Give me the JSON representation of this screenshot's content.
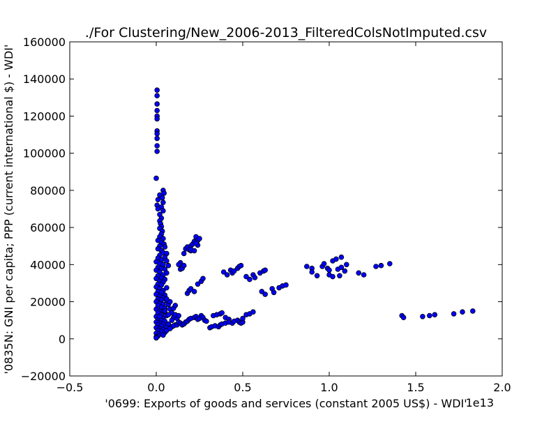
{
  "chart_data": {
    "type": "scatter",
    "title": "./For Clustering/New_2006-2013_FilteredColsNotImputed.csv",
    "xlabel": "'0699: Exports of goods and services  (constant 2005 US$) - WDI'",
    "ylabel": "'0835N: GNI per capita; PPP  (current international $) - WDI'",
    "x_offset_label": "1e13",
    "xlim": [
      -0.5,
      2.0
    ],
    "ylim": [
      -20000,
      160000
    ],
    "x_ticks": [
      "−0.5",
      "0.0",
      "0.5",
      "1.0",
      "1.5",
      "2.0"
    ],
    "y_ticks": [
      "−20000",
      "0",
      "20000",
      "40000",
      "60000",
      "80000",
      "100000",
      "120000",
      "140000",
      "160000"
    ],
    "grid": false,
    "marker_color": "#0000ff",
    "marker_edge_color": "#000000",
    "x_values_unit": "1e13 US$",
    "points": [
      [
        0.005,
        134000
      ],
      [
        0.005,
        131000
      ],
      [
        0.005,
        126500
      ],
      [
        0.005,
        123000
      ],
      [
        0.005,
        120000
      ],
      [
        0.005,
        118500
      ],
      [
        0.005,
        112000
      ],
      [
        0.005,
        110500
      ],
      [
        0.005,
        108000
      ],
      [
        0.005,
        104000
      ],
      [
        0.005,
        101000
      ],
      [
        0.0,
        86500
      ],
      [
        0.04,
        80000
      ],
      [
        0.045,
        78500
      ],
      [
        0.02,
        77500
      ],
      [
        0.035,
        76000
      ],
      [
        0.01,
        75000
      ],
      [
        0.04,
        73500
      ],
      [
        0.005,
        72000
      ],
      [
        0.03,
        71000
      ],
      [
        0.01,
        70000
      ],
      [
        0.04,
        69000
      ],
      [
        0.02,
        67000
      ],
      [
        0.03,
        65000
      ],
      [
        0.02,
        63500
      ],
      [
        0.025,
        62000
      ],
      [
        0.03,
        60500
      ],
      [
        0.02,
        59500
      ],
      [
        0.035,
        58000
      ],
      [
        0.03,
        56500
      ],
      [
        0.02,
        55000
      ],
      [
        0.04,
        54000
      ],
      [
        0.01,
        53000
      ],
      [
        0.03,
        52000
      ],
      [
        0.045,
        51000
      ],
      [
        0.02,
        50000
      ],
      [
        0.05,
        49500
      ],
      [
        0.01,
        48500
      ],
      [
        0.03,
        47500
      ],
      [
        0.04,
        46500
      ],
      [
        0.06,
        46000
      ],
      [
        0.02,
        45000
      ],
      [
        0.05,
        44000
      ],
      [
        0.01,
        43500
      ],
      [
        0.03,
        42500
      ],
      [
        0.06,
        42000
      ],
      [
        0.0,
        41500
      ],
      [
        0.02,
        40500
      ],
      [
        0.04,
        40000
      ],
      [
        0.07,
        39500
      ],
      [
        0.01,
        38500
      ],
      [
        0.03,
        38000
      ],
      [
        0.05,
        37500
      ],
      [
        0.0,
        37000
      ],
      [
        0.02,
        36000
      ],
      [
        0.06,
        35500
      ],
      [
        0.04,
        34500
      ],
      [
        0.01,
        34000
      ],
      [
        0.03,
        33000
      ],
      [
        0.0,
        32500
      ],
      [
        0.05,
        32000
      ],
      [
        0.02,
        31000
      ],
      [
        0.04,
        30500
      ],
      [
        0.01,
        29500
      ],
      [
        0.03,
        29000
      ],
      [
        0.0,
        28000
      ],
      [
        0.06,
        27500
      ],
      [
        0.02,
        27000
      ],
      [
        0.04,
        26000
      ],
      [
        0.01,
        25500
      ],
      [
        0.03,
        25000
      ],
      [
        0.0,
        24000
      ],
      [
        0.05,
        23500
      ],
      [
        0.02,
        23000
      ],
      [
        0.04,
        22000
      ],
      [
        0.01,
        21500
      ],
      [
        0.03,
        21000
      ],
      [
        0.06,
        20500
      ],
      [
        0.0,
        20000
      ],
      [
        0.02,
        19000
      ],
      [
        0.04,
        18500
      ],
      [
        0.01,
        18000
      ],
      [
        0.03,
        17000
      ],
      [
        0.05,
        16500
      ],
      [
        0.0,
        16000
      ],
      [
        0.02,
        15000
      ],
      [
        0.04,
        14500
      ],
      [
        0.01,
        14000
      ],
      [
        0.03,
        13000
      ],
      [
        0.06,
        12500
      ],
      [
        0.0,
        12000
      ],
      [
        0.02,
        11500
      ],
      [
        0.04,
        11000
      ],
      [
        0.01,
        10500
      ],
      [
        0.03,
        10000
      ],
      [
        0.05,
        9500
      ],
      [
        0.0,
        9000
      ],
      [
        0.02,
        8500
      ],
      [
        0.04,
        8000
      ],
      [
        0.01,
        7500
      ],
      [
        0.03,
        7000
      ],
      [
        0.06,
        6500
      ],
      [
        0.0,
        6000
      ],
      [
        0.02,
        5500
      ],
      [
        0.04,
        5000
      ],
      [
        0.01,
        4500
      ],
      [
        0.03,
        4000
      ],
      [
        0.05,
        3500
      ],
      [
        0.0,
        3000
      ],
      [
        0.02,
        2500
      ],
      [
        0.04,
        2000
      ],
      [
        0.01,
        1500
      ],
      [
        0.0,
        1000
      ],
      [
        0.0,
        500
      ],
      [
        0.02,
        12000
      ],
      [
        0.05,
        15000
      ],
      [
        0.08,
        16000
      ],
      [
        0.1,
        16500
      ],
      [
        0.09,
        14000
      ],
      [
        0.07,
        13000
      ],
      [
        0.11,
        18000
      ],
      [
        0.07,
        18500
      ],
      [
        0.08,
        20000
      ],
      [
        0.06,
        21500
      ],
      [
        0.1,
        11500
      ],
      [
        0.09,
        10000
      ],
      [
        0.12,
        11000
      ],
      [
        0.11,
        13000
      ],
      [
        0.13,
        12500
      ],
      [
        0.07,
        8000
      ],
      [
        0.09,
        6500
      ],
      [
        0.11,
        7500
      ],
      [
        0.06,
        4500
      ],
      [
        0.08,
        5500
      ],
      [
        0.1,
        7000
      ],
      [
        0.14,
        37500
      ],
      [
        0.15,
        38000
      ],
      [
        0.16,
        39500
      ],
      [
        0.14,
        41000
      ],
      [
        0.13,
        40000
      ],
      [
        0.16,
        46000
      ],
      [
        0.17,
        48500
      ],
      [
        0.18,
        49500
      ],
      [
        0.19,
        48000
      ],
      [
        0.2,
        47500
      ],
      [
        0.2,
        50000
      ],
      [
        0.21,
        51000
      ],
      [
        0.22,
        52500
      ],
      [
        0.23,
        55000
      ],
      [
        0.24,
        53000
      ],
      [
        0.25,
        54000
      ],
      [
        0.2,
        48000
      ],
      [
        0.22,
        47500
      ],
      [
        0.24,
        50500
      ],
      [
        0.23,
        51500
      ],
      [
        0.18,
        24500
      ],
      [
        0.19,
        26000
      ],
      [
        0.2,
        27000
      ],
      [
        0.22,
        25500
      ],
      [
        0.24,
        29500
      ],
      [
        0.26,
        31000
      ],
      [
        0.27,
        32500
      ],
      [
        0.12,
        7500
      ],
      [
        0.13,
        9000
      ],
      [
        0.14,
        8500
      ],
      [
        0.15,
        7500
      ],
      [
        0.16,
        8000
      ],
      [
        0.17,
        9000
      ],
      [
        0.18,
        9500
      ],
      [
        0.19,
        10500
      ],
      [
        0.2,
        11000
      ],
      [
        0.22,
        11500
      ],
      [
        0.23,
        12000
      ],
      [
        0.24,
        10500
      ],
      [
        0.25,
        11000
      ],
      [
        0.26,
        12500
      ],
      [
        0.27,
        11500
      ],
      [
        0.28,
        10000
      ],
      [
        0.29,
        9500
      ],
      [
        0.31,
        6000
      ],
      [
        0.32,
        6500
      ],
      [
        0.34,
        7000
      ],
      [
        0.36,
        6500
      ],
      [
        0.37,
        7500
      ],
      [
        0.38,
        8000
      ],
      [
        0.33,
        12500
      ],
      [
        0.35,
        13000
      ],
      [
        0.37,
        13500
      ],
      [
        0.38,
        14000
      ],
      [
        0.4,
        11500
      ],
      [
        0.42,
        10500
      ],
      [
        0.4,
        8500
      ],
      [
        0.42,
        9000
      ],
      [
        0.44,
        8500
      ],
      [
        0.45,
        9500
      ],
      [
        0.47,
        10000
      ],
      [
        0.48,
        9000
      ],
      [
        0.49,
        8500
      ],
      [
        0.5,
        9000
      ],
      [
        0.5,
        11000
      ],
      [
        0.52,
        13000
      ],
      [
        0.54,
        13500
      ],
      [
        0.56,
        14500
      ],
      [
        0.39,
        36000
      ],
      [
        0.41,
        34500
      ],
      [
        0.43,
        37000
      ],
      [
        0.44,
        35500
      ],
      [
        0.45,
        36500
      ],
      [
        0.47,
        38000
      ],
      [
        0.48,
        39000
      ],
      [
        0.49,
        39500
      ],
      [
        0.52,
        33500
      ],
      [
        0.54,
        32000
      ],
      [
        0.56,
        34500
      ],
      [
        0.57,
        33000
      ],
      [
        0.6,
        35500
      ],
      [
        0.62,
        36500
      ],
      [
        0.63,
        37000
      ],
      [
        0.61,
        25500
      ],
      [
        0.63,
        24000
      ],
      [
        0.67,
        27000
      ],
      [
        0.68,
        25000
      ],
      [
        0.71,
        27500
      ],
      [
        0.73,
        28500
      ],
      [
        0.75,
        29000
      ],
      [
        0.87,
        39000
      ],
      [
        0.9,
        38000
      ],
      [
        0.9,
        36000
      ],
      [
        0.93,
        34000
      ],
      [
        0.96,
        39000
      ],
      [
        0.97,
        40500
      ],
      [
        0.99,
        38000
      ],
      [
        1.0,
        37000
      ],
      [
        1.0,
        34500
      ],
      [
        1.02,
        33500
      ],
      [
        1.02,
        42000
      ],
      [
        1.04,
        43000
      ],
      [
        1.05,
        37500
      ],
      [
        1.06,
        34000
      ],
      [
        1.07,
        44000
      ],
      [
        1.07,
        38500
      ],
      [
        1.09,
        36500
      ],
      [
        1.1,
        40000
      ],
      [
        1.17,
        35500
      ],
      [
        1.2,
        34500
      ],
      [
        1.27,
        39000
      ],
      [
        1.3,
        39500
      ],
      [
        1.35,
        40500
      ],
      [
        1.42,
        12500
      ],
      [
        1.43,
        11500
      ],
      [
        1.54,
        12000
      ],
      [
        1.58,
        12500
      ],
      [
        1.61,
        13000
      ],
      [
        1.72,
        13500
      ],
      [
        1.77,
        14500
      ],
      [
        1.83,
        15000
      ]
    ]
  }
}
